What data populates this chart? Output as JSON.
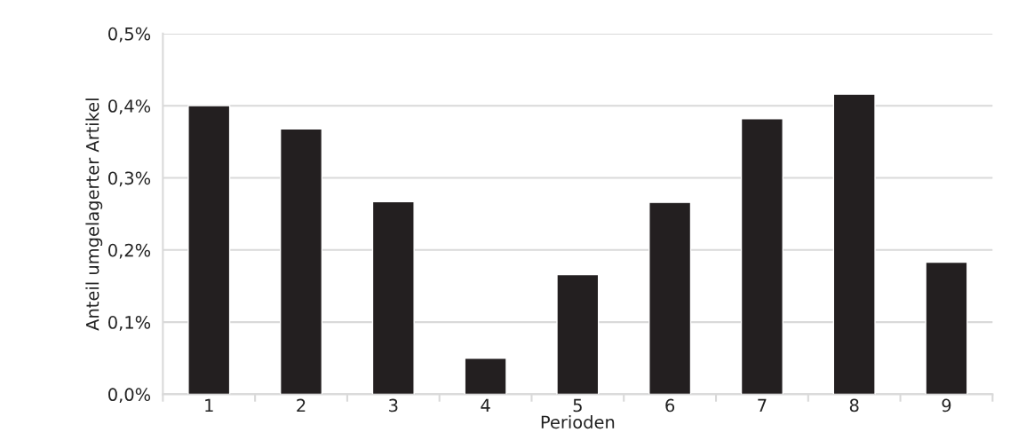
{
  "chart_data": {
    "type": "bar",
    "xlabel": "Perioden",
    "ylabel": "Anteil umgelagerter Artikel",
    "categories": [
      "1",
      "2",
      "3",
      "4",
      "5",
      "6",
      "7",
      "8",
      "9"
    ],
    "values": [
      0.4,
      0.368,
      0.267,
      0.05,
      0.166,
      0.266,
      0.382,
      0.416,
      0.183
    ],
    "color": "#231f20",
    "ylim": [
      0,
      0.5
    ],
    "yticks": [
      {
        "value": 0,
        "label": "0,0%"
      },
      {
        "value": 0.1,
        "label": "0,1%"
      },
      {
        "value": 0.2,
        "label": "0,2%"
      },
      {
        "value": 0.3,
        "label": "0,3%"
      },
      {
        "value": 0.4,
        "label": "0,4%"
      },
      {
        "value": 0.5,
        "label": "0,5%"
      }
    ],
    "grid": "y"
  }
}
